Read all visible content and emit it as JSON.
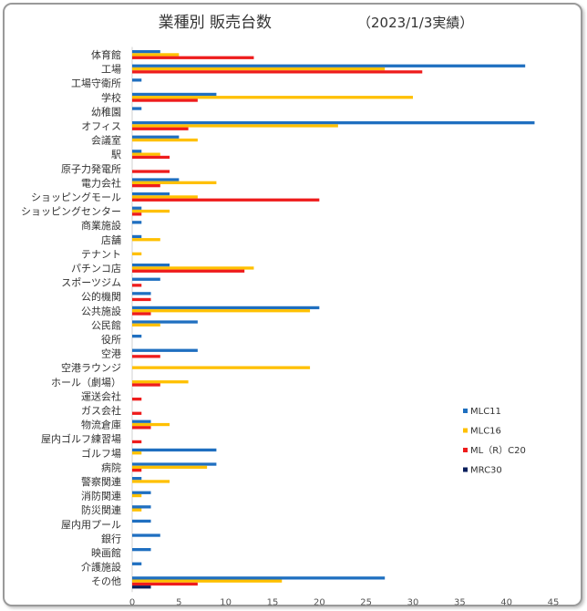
{
  "chart_data": {
    "type": "bar",
    "orientation": "horizontal",
    "title": "業種別 販売台数",
    "subtitle": "（2023/1/3実績）",
    "categories": [
      "体育館",
      "工場",
      "工場守衛所",
      "学校",
      "幼稚園",
      "オフィス",
      "会議室",
      "駅",
      "原子力発電所",
      "電力会社",
      "ショッピングモール",
      "ショッピングセンター",
      "商業施設",
      "店舗",
      "テナント",
      "パチンコ店",
      "スポーツジム",
      "公的機関",
      "公共施設",
      "公民館",
      "役所",
      "空港",
      "空港ラウンジ",
      "ホール（劇場）",
      "運送会社",
      "ガス会社",
      "物流倉庫",
      "屋内ゴルフ練習場",
      "ゴルフ場",
      "病院",
      "警察関連",
      "消防関連",
      "防災関連",
      "屋内用プール",
      "銀行",
      "映画館",
      "介護施設",
      "その他"
    ],
    "series": [
      {
        "name": "MLC11",
        "color": "#1f6fc0",
        "values": [
          3,
          42,
          1,
          9,
          1,
          43,
          5,
          1,
          0,
          5,
          4,
          1,
          1,
          1,
          0,
          4,
          3,
          2,
          20,
          7,
          1,
          7,
          0,
          0,
          0,
          0,
          2,
          0,
          9,
          9,
          1,
          2,
          2,
          2,
          3,
          2,
          1,
          27
        ]
      },
      {
        "name": "MLC16",
        "color": "#ffc000",
        "values": [
          5,
          27,
          0,
          30,
          0,
          22,
          7,
          3,
          0,
          9,
          7,
          4,
          0,
          3,
          1,
          13,
          0,
          0,
          19,
          3,
          0,
          0,
          19,
          6,
          0,
          0,
          4,
          0,
          1,
          8,
          4,
          1,
          1,
          0,
          0,
          0,
          0,
          16
        ]
      },
      {
        "name": "ML（R）C20",
        "color": "#ee1c1c",
        "values": [
          13,
          31,
          0,
          7,
          0,
          6,
          0,
          4,
          4,
          3,
          20,
          1,
          0,
          0,
          0,
          12,
          1,
          2,
          2,
          0,
          0,
          3,
          0,
          3,
          1,
          1,
          2,
          1,
          0,
          1,
          0,
          0,
          0,
          0,
          0,
          0,
          0,
          7
        ]
      },
      {
        "name": "MRC30",
        "color": "#0a1f5c",
        "values": [
          0,
          0,
          0,
          0,
          0,
          0,
          0,
          0,
          0,
          0,
          0,
          0,
          0,
          0,
          0,
          0,
          0,
          0,
          0,
          0,
          0,
          0,
          0,
          0,
          0,
          0,
          0,
          0,
          0,
          0,
          0,
          0,
          0,
          0,
          0,
          0,
          0,
          2
        ]
      }
    ],
    "xticks": [
      0,
      5,
      10,
      15,
      20,
      25,
      30,
      35,
      40,
      45
    ],
    "xlim": [
      0,
      45
    ],
    "grid": false,
    "legend_position": "right"
  }
}
